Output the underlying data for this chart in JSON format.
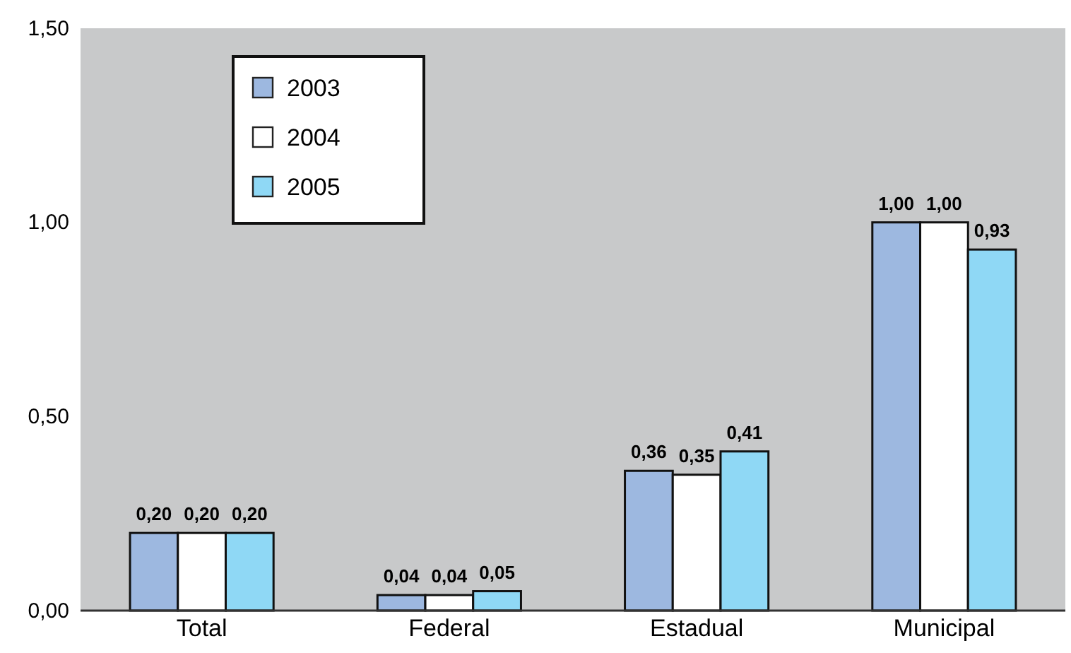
{
  "chart_data": {
    "type": "bar",
    "categories": [
      "Total",
      "Federal",
      "Estadual",
      "Municipal"
    ],
    "series": [
      {
        "name": "2003",
        "color": "#9db8e0",
        "values": [
          0.2,
          0.04,
          0.36,
          1.0
        ],
        "value_labels": [
          "0,20",
          "0,04",
          "0,36",
          "1,00"
        ]
      },
      {
        "name": "2004",
        "color": "#ffffff",
        "values": [
          0.2,
          0.04,
          0.35,
          1.0
        ],
        "value_labels": [
          "0,20",
          "0,04",
          "0,35",
          "1,00"
        ]
      },
      {
        "name": "2005",
        "color": "#8fd8f5",
        "values": [
          0.2,
          0.05,
          0.41,
          0.93
        ],
        "value_labels": [
          "0,20",
          "0,05",
          "0,41",
          "0,93"
        ]
      }
    ],
    "ylim": [
      0,
      1.5
    ],
    "yticks": [
      {
        "value": 0,
        "label": "0,00"
      },
      {
        "value": 0.5,
        "label": "0,50"
      },
      {
        "value": 1,
        "label": "1,00"
      },
      {
        "value": 1.5,
        "label": "1,50"
      }
    ],
    "grid": false,
    "legend": "top left"
  }
}
